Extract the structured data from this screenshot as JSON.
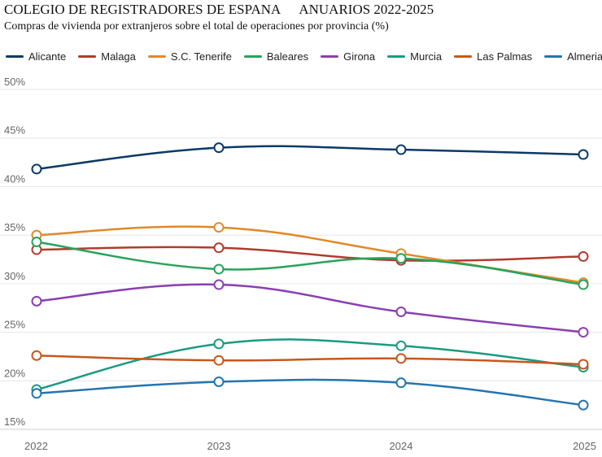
{
  "header": {
    "title_left": "COLEGIO DE REGISTRADORES DE ESPANA",
    "title_right": "ANUARIOS 2022-2025",
    "subtitle": "Compras de vivienda por extranjeros sobre el total de operaciones por provincia (%)"
  },
  "chart_data": {
    "type": "line",
    "title": "COLEGIO DE REGISTRADORES DE ESPANA ANUARIOS 2022-2025",
    "subtitle": "Compras de vivienda por extranjeros sobre el total de operaciones por provincia (%)",
    "xlabel": "",
    "ylabel": "",
    "x": [
      "2022",
      "2023",
      "2024",
      "2025"
    ],
    "ylim": [
      15,
      50
    ],
    "y_ticks": [
      "15%",
      "20%",
      "25%",
      "30%",
      "35%",
      "40%",
      "45%",
      "50%"
    ],
    "grid": "horizontal",
    "legend_position": "top",
    "series": [
      {
        "name": "Alicante",
        "color": "#0b3a66",
        "values": [
          41.8,
          44.0,
          43.8,
          43.3
        ]
      },
      {
        "name": "Malaga",
        "color": "#b23a2e",
        "values": [
          33.5,
          33.7,
          32.4,
          32.8
        ]
      },
      {
        "name": "S.C. Tenerife",
        "color": "#e0892a",
        "values": [
          35.0,
          35.8,
          33.1,
          30.1
        ]
      },
      {
        "name": "Baleares",
        "color": "#27a35b",
        "values": [
          34.3,
          31.5,
          32.6,
          29.9
        ]
      },
      {
        "name": "Girona",
        "color": "#8a3fb0",
        "values": [
          28.2,
          29.9,
          27.1,
          25.0
        ]
      },
      {
        "name": "Murcia",
        "color": "#1b9a82",
        "values": [
          19.1,
          23.8,
          23.6,
          21.4
        ]
      },
      {
        "name": "Las Palmas",
        "color": "#c8561d",
        "values": [
          22.6,
          22.1,
          22.3,
          21.7
        ]
      },
      {
        "name": "Almeria",
        "color": "#2475ad",
        "values": [
          18.7,
          19.9,
          19.8,
          17.5
        ]
      }
    ]
  }
}
